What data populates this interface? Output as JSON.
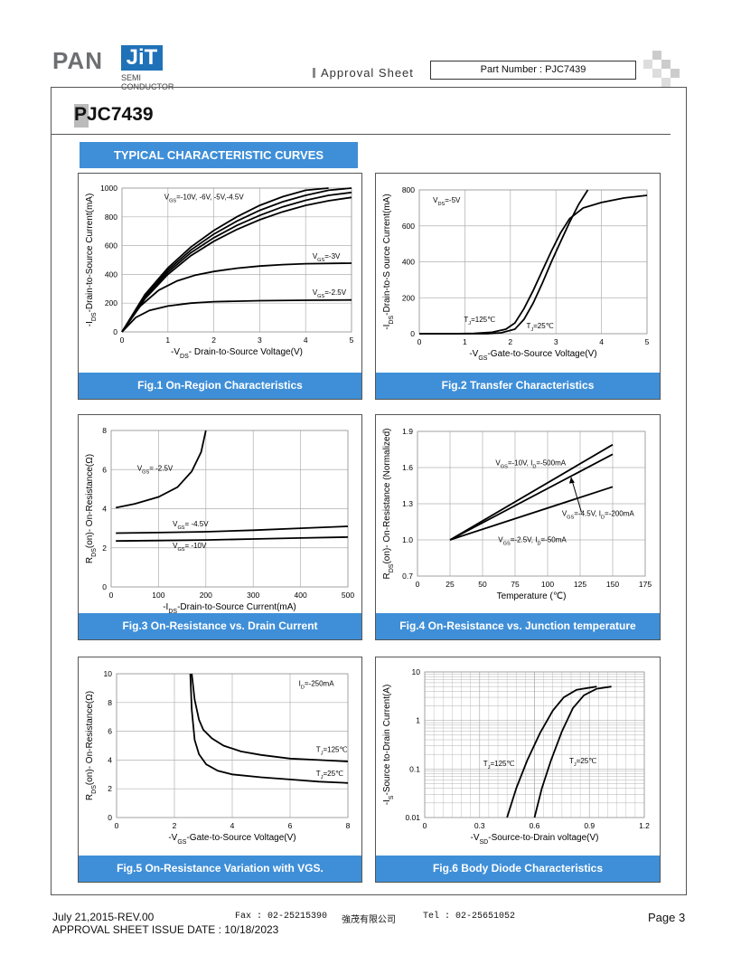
{
  "header": {
    "logo_pan": "PAN",
    "logo_jit": "JiT",
    "logo_sub1": "SEMI",
    "logo_sub2": "CONDUCTOR",
    "approval": "Approval Sheet",
    "part_number": "Part Number : PJC7439"
  },
  "part_title": "PJC7439",
  "section_title": "TYPICAL CHARACTERISTIC CURVES",
  "footer": {
    "date": "July 21,2015-REV.00",
    "issue": "APPROVAL SHEET ISSUE DATE : 10/18/2023",
    "fax": "Fax : 02-25215390",
    "company": "強茂有限公司",
    "tel": "Tel : 02-25651052",
    "page": "Page 3"
  },
  "colors": {
    "caption_bg": "#3f8fd8",
    "curve": "#000000",
    "grid": "#b0b0b0"
  },
  "chart_data": [
    {
      "id": "fig1",
      "type": "line",
      "caption": "Fig.1 On-Region Characteristics",
      "xlabel": [
        "-V",
        "DS",
        "- Drain-to-Source Voltage(V)"
      ],
      "ylabel": [
        "-I",
        "DS",
        "-Drain-to-Source Current(mA)"
      ],
      "xlim": [
        0,
        5
      ],
      "ylim": [
        0,
        1000
      ],
      "xticks": [
        0,
        1,
        2,
        3,
        4,
        5
      ],
      "yticks": [
        0,
        200,
        400,
        600,
        800,
        1000
      ],
      "series": [
        {
          "points": [
            [
              0,
              0
            ],
            [
              0.5,
              260
            ],
            [
              1,
              445
            ],
            [
              1.5,
              590
            ],
            [
              2,
              705
            ],
            [
              2.5,
              800
            ],
            [
              3,
              880
            ],
            [
              3.5,
              940
            ],
            [
              4,
              985
            ],
            [
              4.5,
              1000
            ]
          ]
        },
        {
          "points": [
            [
              0,
              0
            ],
            [
              0.5,
              250
            ],
            [
              1,
              430
            ],
            [
              1.5,
              570
            ],
            [
              2,
              680
            ],
            [
              2.5,
              770
            ],
            [
              3,
              845
            ],
            [
              3.5,
              905
            ],
            [
              4,
              950
            ],
            [
              4.5,
              985
            ],
            [
              5,
              1000
            ]
          ]
        },
        {
          "points": [
            [
              0,
              0
            ],
            [
              0.5,
              240
            ],
            [
              1,
              415
            ],
            [
              1.5,
              550
            ],
            [
              2,
              655
            ],
            [
              2.5,
              740
            ],
            [
              3,
              810
            ],
            [
              3.5,
              870
            ],
            [
              4,
              915
            ],
            [
              4.5,
              950
            ],
            [
              5,
              970
            ]
          ]
        },
        {
          "points": [
            [
              0,
              0
            ],
            [
              0.5,
              230
            ],
            [
              1,
              400
            ],
            [
              1.5,
              530
            ],
            [
              2,
              630
            ],
            [
              2.5,
              712
            ],
            [
              3,
              780
            ],
            [
              3.5,
              835
            ],
            [
              4,
              880
            ],
            [
              4.5,
              912
            ],
            [
              5,
              935
            ]
          ]
        },
        {
          "points": [
            [
              0,
              0
            ],
            [
              0.4,
              180
            ],
            [
              0.8,
              290
            ],
            [
              1.2,
              355
            ],
            [
              1.6,
              395
            ],
            [
              2,
              420
            ],
            [
              2.5,
              443
            ],
            [
              3,
              458
            ],
            [
              3.5,
              468
            ],
            [
              4,
              474
            ],
            [
              5,
              478
            ]
          ]
        },
        {
          "points": [
            [
              0,
              0
            ],
            [
              0.3,
              100
            ],
            [
              0.6,
              150
            ],
            [
              1,
              180
            ],
            [
              1.5,
              200
            ],
            [
              2,
              210
            ],
            [
              3,
              217
            ],
            [
              4,
              220
            ],
            [
              5,
              222
            ]
          ]
        }
      ],
      "annotations": [
        {
          "parts": [
            "V",
            "GS",
            "=-10V, -6V, -5V,-4.5V"
          ],
          "at": [
            0.92,
            920
          ],
          "anchor": "start"
        },
        {
          "parts": [
            "V",
            "GS",
            "=-3V"
          ],
          "at": [
            4.15,
            510
          ],
          "anchor": "start"
        },
        {
          "parts": [
            "V",
            "GS",
            "=-2.5V"
          ],
          "at": [
            4.15,
            258
          ],
          "anchor": "start"
        }
      ]
    },
    {
      "id": "fig2",
      "type": "line",
      "caption": "Fig.2 Transfer Characteristics",
      "xlabel": [
        "-V",
        "GS",
        "-Gate-to-Source Voltage(V)"
      ],
      "ylabel": [
        "-I",
        "DS",
        "-Drain-to-S ource Current(mA)"
      ],
      "xlim": [
        0,
        5
      ],
      "ylim": [
        0,
        800
      ],
      "xticks": [
        0,
        1,
        2,
        3,
        4,
        5
      ],
      "yticks": [
        0,
        200,
        400,
        600,
        800
      ],
      "series": [
        {
          "name": "T_J=125°C",
          "points": [
            [
              0,
              0
            ],
            [
              0.8,
              0
            ],
            [
              1.2,
              2
            ],
            [
              1.6,
              8
            ],
            [
              1.9,
              25
            ],
            [
              2.1,
              60
            ],
            [
              2.3,
              140
            ],
            [
              2.5,
              240
            ],
            [
              2.7,
              350
            ],
            [
              2.9,
              460
            ],
            [
              3.1,
              560
            ],
            [
              3.3,
              640
            ],
            [
              3.6,
              700
            ],
            [
              4,
              730
            ],
            [
              4.5,
              755
            ],
            [
              5,
              770
            ]
          ]
        },
        {
          "name": "T_J=25°C",
          "points": [
            [
              0,
              0
            ],
            [
              1.5,
              0
            ],
            [
              1.8,
              5
            ],
            [
              2.1,
              25
            ],
            [
              2.3,
              80
            ],
            [
              2.5,
              170
            ],
            [
              2.7,
              280
            ],
            [
              2.9,
              400
            ],
            [
              3.1,
              510
            ],
            [
              3.3,
              620
            ],
            [
              3.5,
              720
            ],
            [
              3.7,
              800
            ]
          ]
        }
      ],
      "annotations": [
        {
          "parts": [
            "V",
            "DS",
            "=-5V"
          ],
          "at": [
            0.3,
            730
          ],
          "anchor": "start"
        },
        {
          "parts": [
            "T",
            "J",
            "=125℃"
          ],
          "at": [
            0.98,
            65
          ],
          "anchor": "start"
        },
        {
          "parts": [
            "T",
            "J",
            "=25℃"
          ],
          "at": [
            2.35,
            30
          ],
          "anchor": "start"
        }
      ]
    },
    {
      "id": "fig3",
      "type": "line",
      "caption": "Fig.3 On-Resistance vs. Drain Current",
      "xlabel": [
        "-I",
        "DS",
        "-Drain-to-Source  Current(mA)"
      ],
      "ylabel": [
        "R",
        "DS",
        "(on)- On-Resistance(Ω)"
      ],
      "xlim": [
        0,
        500
      ],
      "ylim": [
        0,
        8
      ],
      "xticks": [
        0,
        100,
        200,
        300,
        400,
        500
      ],
      "yticks": [
        0,
        2,
        4,
        6,
        8
      ],
      "series": [
        {
          "name": "V_GS=-2.5V",
          "points": [
            [
              10,
              4.05
            ],
            [
              50,
              4.25
            ],
            [
              100,
              4.6
            ],
            [
              140,
              5.1
            ],
            [
              170,
              5.9
            ],
            [
              190,
              6.9
            ],
            [
              200,
              8
            ]
          ]
        },
        {
          "name": "V_GS=-4.5V",
          "points": [
            [
              10,
              2.75
            ],
            [
              100,
              2.78
            ],
            [
              200,
              2.82
            ],
            [
              300,
              2.9
            ],
            [
              400,
              3.0
            ],
            [
              500,
              3.1
            ]
          ]
        },
        {
          "name": "V_GS=-10V",
          "points": [
            [
              10,
              2.35
            ],
            [
              100,
              2.37
            ],
            [
              200,
              2.4
            ],
            [
              300,
              2.45
            ],
            [
              400,
              2.5
            ],
            [
              500,
              2.55
            ]
          ]
        }
      ],
      "annotations": [
        {
          "parts": [
            "V",
            "GS",
            "= -2.5V"
          ],
          "at": [
            55,
            5.95
          ],
          "anchor": "start"
        },
        {
          "parts": [
            "V",
            "GS",
            "= -4.5V"
          ],
          "at": [
            130,
            3.1
          ],
          "anchor": "start"
        },
        {
          "parts": [
            "V",
            "GS",
            "= -10V"
          ],
          "at": [
            130,
            2.0
          ],
          "anchor": "start"
        }
      ]
    },
    {
      "id": "fig4",
      "type": "line",
      "caption": "Fig.4 On-Resistance vs. Junction temperature",
      "xlabel": [
        "Temperature (℃)"
      ],
      "ylabel": [
        "R",
        "DS",
        "(on)- On-Resistance (Normalized)"
      ],
      "xlim": [
        0,
        175
      ],
      "ylim": [
        0.7,
        1.9
      ],
      "xticks": [
        0,
        25,
        50,
        75,
        100,
        125,
        150,
        175
      ],
      "yticks": [
        0.7,
        1.0,
        1.3,
        1.6,
        1.9
      ],
      "series": [
        {
          "name": "V_GS=-10V, I_D=-500mA",
          "points": [
            [
              25,
              1.0
            ],
            [
              150,
              1.79
            ]
          ]
        },
        {
          "name": "V_GS=-4.5V, I_D=-200mA",
          "points": [
            [
              25,
              1.0
            ],
            [
              150,
              1.71
            ]
          ]
        },
        {
          "name": "V_GS=-2.5V, I_D=-50mA",
          "points": [
            [
              25,
              1.0
            ],
            [
              150,
              1.44
            ]
          ]
        }
      ],
      "annotations": [
        {
          "parts": [
            "V",
            "GS",
            "=-10V, I",
            "D",
            "=-500mA"
          ],
          "at": [
            60,
            1.62
          ],
          "anchor": "start"
        },
        {
          "parts": [
            "V",
            "GS",
            "=-4.5V, I",
            "D",
            "=-200mA"
          ],
          "at": [
            111,
            1.2
          ],
          "anchor": "start"
        },
        {
          "parts": [
            "V",
            "GS",
            "=-2.5V, I",
            "D",
            "=-50mA"
          ],
          "at": [
            62,
            0.98
          ],
          "anchor": "start"
        }
      ]
    },
    {
      "id": "fig5",
      "type": "line",
      "caption": "Fig.5 On-Resistance Variation with VGS.",
      "xlabel": [
        "-V",
        "GS",
        "-Gate-to-Source   Voltage(V)"
      ],
      "ylabel": [
        "R",
        "DS",
        "(on)- On-Resistance(Ω)"
      ],
      "xlim": [
        0,
        8
      ],
      "ylim": [
        0,
        10
      ],
      "xticks": [
        0,
        2,
        4,
        6,
        8
      ],
      "yticks": [
        0,
        2,
        4,
        6,
        8,
        10
      ],
      "series": [
        {
          "name": "T_J=125°C",
          "points": [
            [
              2.6,
              10
            ],
            [
              2.7,
              8.2
            ],
            [
              2.85,
              6.8
            ],
            [
              3,
              6.1
            ],
            [
              3.3,
              5.5
            ],
            [
              3.7,
              5.0
            ],
            [
              4.3,
              4.6
            ],
            [
              5,
              4.35
            ],
            [
              6,
              4.1
            ],
            [
              7,
              4.0
            ],
            [
              8,
              3.9
            ]
          ]
        },
        {
          "name": "T_J=25°C",
          "points": [
            [
              2.55,
              10
            ],
            [
              2.6,
              7.5
            ],
            [
              2.7,
              5.4
            ],
            [
              2.85,
              4.4
            ],
            [
              3.1,
              3.7
            ],
            [
              3.5,
              3.25
            ],
            [
              4,
              3.0
            ],
            [
              5,
              2.8
            ],
            [
              6,
              2.65
            ],
            [
              7,
              2.5
            ],
            [
              8,
              2.4
            ]
          ]
        }
      ],
      "annotations": [
        {
          "parts": [
            "I",
            "D",
            "=-250mA"
          ],
          "at": [
            6.3,
            9.15
          ],
          "anchor": "start"
        },
        {
          "parts": [
            "T",
            "J",
            "=125℃"
          ],
          "at": [
            6.9,
            4.55
          ],
          "anchor": "start"
        },
        {
          "parts": [
            "T",
            "J",
            "=25℃"
          ],
          "at": [
            6.9,
            2.9
          ],
          "anchor": "start"
        }
      ]
    },
    {
      "id": "fig6",
      "type": "line",
      "caption": "Fig.6 Body Diode Characteristics",
      "xlabel": [
        "-V",
        "SD",
        "-Source-to-Drain  voltage(V)"
      ],
      "ylabel": [
        "-I",
        "S",
        "-Source  to-Drain Current(A)"
      ],
      "xlim": [
        0,
        1.2
      ],
      "ylim": [
        0.01,
        10
      ],
      "yscale": "log",
      "xticks": [
        0,
        0.3,
        0.6,
        0.9,
        1.2
      ],
      "yticks": [
        0.01,
        0.1,
        1,
        10
      ],
      "xtick_labels": [
        "0",
        "0.3",
        "0.6",
        "0.9",
        "1.2"
      ],
      "ytick_labels": [
        "0.01",
        "0.1",
        "1",
        "10"
      ],
      "series": [
        {
          "name": "T_J=125°C",
          "points": [
            [
              0.45,
              0.01
            ],
            [
              0.5,
              0.04
            ],
            [
              0.56,
              0.15
            ],
            [
              0.63,
              0.55
            ],
            [
              0.7,
              1.6
            ],
            [
              0.76,
              3.0
            ],
            [
              0.83,
              4.3
            ],
            [
              0.94,
              5.0
            ]
          ]
        },
        {
          "name": "T_J=25°C",
          "points": [
            [
              0.6,
              0.01
            ],
            [
              0.64,
              0.04
            ],
            [
              0.69,
              0.15
            ],
            [
              0.75,
              0.6
            ],
            [
              0.81,
              1.8
            ],
            [
              0.87,
              3.3
            ],
            [
              0.94,
              4.5
            ],
            [
              1.02,
              5.0
            ]
          ]
        }
      ],
      "annotations": [
        {
          "parts": [
            "T",
            "J",
            "=125℃"
          ],
          "at": [
            0.32,
            0.115
          ],
          "anchor": "start"
        },
        {
          "parts": [
            "T",
            "J",
            "=25℃"
          ],
          "at": [
            0.79,
            0.13
          ],
          "anchor": "start"
        }
      ]
    }
  ]
}
